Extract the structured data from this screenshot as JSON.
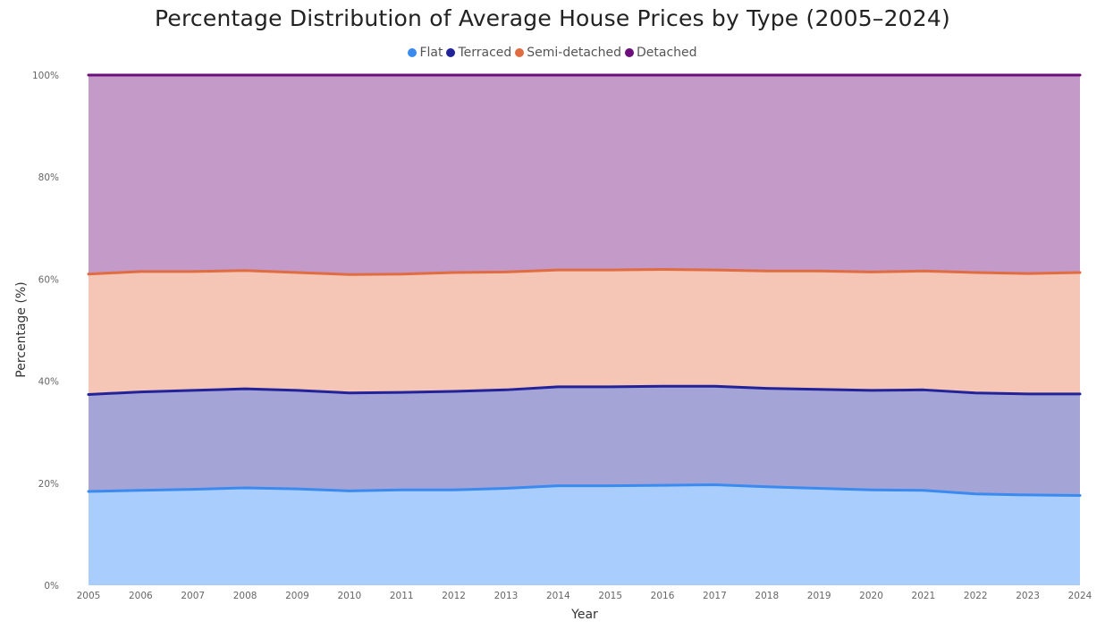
{
  "chart_data": {
    "type": "area",
    "stacked": true,
    "normalized": true,
    "title": "Percentage Distribution of Average House Prices by Type (2005–2024)",
    "xlabel": "Year",
    "ylabel": "Percentage (%)",
    "ylim": [
      0,
      100
    ],
    "yticks": [
      "0%",
      "20%",
      "40%",
      "60%",
      "80%",
      "100%"
    ],
    "ytick_values": [
      0,
      20,
      40,
      60,
      80,
      100
    ],
    "legend_position": "top-center",
    "grid": true,
    "x": [
      "2005",
      "2006",
      "2007",
      "2008",
      "2009",
      "2010",
      "2011",
      "2012",
      "2013",
      "2014",
      "2015",
      "2016",
      "2017",
      "2018",
      "2019",
      "2020",
      "2021",
      "2022",
      "2023",
      "2024"
    ],
    "series": [
      {
        "name": "Flat",
        "line_color": "#3A8AF0",
        "fill_color": "#A9CEFD",
        "values": [
          18.4,
          18.6,
          18.8,
          19.1,
          18.9,
          18.5,
          18.7,
          18.7,
          19.0,
          19.5,
          19.5,
          19.6,
          19.7,
          19.3,
          19.0,
          18.7,
          18.6,
          17.9,
          17.7,
          17.6
        ]
      },
      {
        "name": "Terraced",
        "line_color": "#22239A",
        "fill_color": "#A5A4D6",
        "values": [
          19.0,
          19.3,
          19.4,
          19.4,
          19.3,
          19.2,
          19.1,
          19.3,
          19.3,
          19.4,
          19.4,
          19.4,
          19.3,
          19.3,
          19.4,
          19.5,
          19.7,
          19.8,
          19.8,
          19.9
        ]
      },
      {
        "name": "Semi-detached",
        "line_color": "#E06C42",
        "fill_color": "#F5C6B5",
        "values": [
          23.6,
          23.6,
          23.3,
          23.2,
          23.1,
          23.2,
          23.2,
          23.3,
          23.1,
          22.9,
          22.9,
          22.9,
          22.8,
          23.0,
          23.2,
          23.2,
          23.3,
          23.6,
          23.6,
          23.8
        ]
      },
      {
        "name": "Detached",
        "line_color": "#6C0F7C",
        "fill_color": "#C49AC8",
        "values": [
          39.0,
          38.5,
          38.5,
          38.3,
          38.7,
          39.1,
          39.0,
          38.7,
          38.6,
          38.2,
          38.2,
          38.1,
          38.2,
          38.4,
          38.4,
          38.6,
          38.4,
          38.7,
          38.9,
          38.7
        ]
      }
    ]
  }
}
